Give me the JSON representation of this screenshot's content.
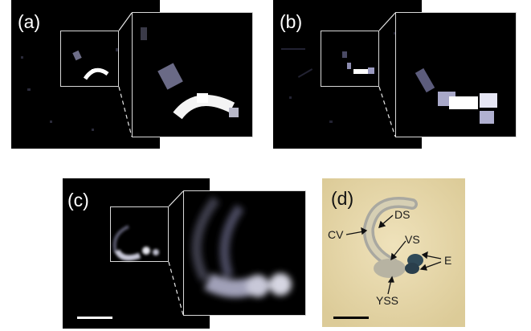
{
  "figure": {
    "panels": [
      {
        "id": "a",
        "label": "(a)"
      },
      {
        "id": "b",
        "label": "(b)"
      },
      {
        "id": "c",
        "label": "(c)"
      },
      {
        "id": "d",
        "label": "(d)"
      }
    ],
    "annotations": {
      "cv": "CV",
      "ds": "DS",
      "vs": "VS",
      "e": "E",
      "yss": "YSS"
    },
    "colors": {
      "background_dark": "#000000",
      "inset_border": "#d8d8d8",
      "photo_background": "#e8d9ad",
      "scale_bar_light": "#ffffff",
      "scale_bar_dark": "#000000"
    }
  }
}
